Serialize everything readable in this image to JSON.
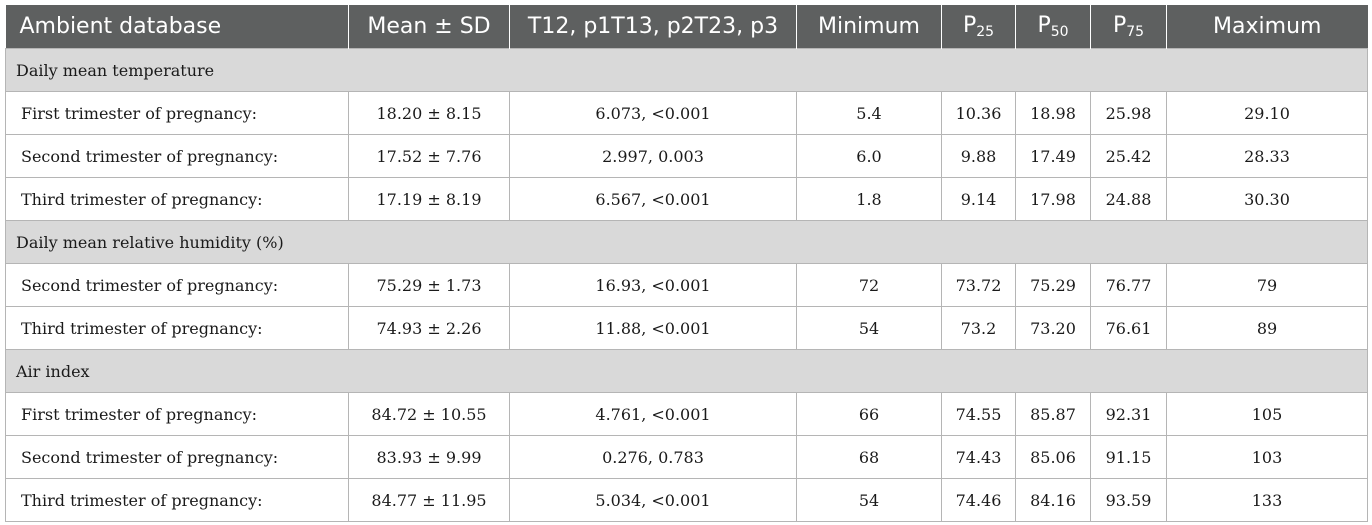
{
  "columns": [
    {
      "text": "Ambient database"
    },
    {
      "text": "Mean ± SD"
    },
    {
      "text": "T12, p1T13, p2T23, p3"
    },
    {
      "text": "Minimum"
    },
    {
      "text": "P",
      "sub": "25"
    },
    {
      "text": "P",
      "sub": "50"
    },
    {
      "text": "P",
      "sub": "75"
    },
    {
      "text": "Maximum"
    }
  ],
  "sections": [
    {
      "title": "Daily mean temperature",
      "rows": [
        [
          "First trimester of pregnancy:",
          "18.20 ± 8.15",
          "6.073, <0.001",
          "5.4",
          "10.36",
          "18.98",
          "25.98",
          "29.10"
        ],
        [
          "Second trimester of pregnancy:",
          "17.52 ± 7.76",
          "2.997, 0.003",
          "6.0",
          "9.88",
          "17.49",
          "25.42",
          "28.33"
        ],
        [
          "Third trimester of pregnancy:",
          "17.19 ± 8.19",
          "6.567, <0.001",
          "1.8",
          "9.14",
          "17.98",
          "24.88",
          "30.30"
        ]
      ]
    },
    {
      "title": "Daily mean relative humidity (%)",
      "rows": [
        [
          "Second trimester of pregnancy:",
          "75.29 ± 1.73",
          "16.93, <0.001",
          "72",
          "73.72",
          "75.29",
          "76.77",
          "79"
        ],
        [
          "Third trimester of pregnancy:",
          "74.93 ± 2.26",
          "11.88, <0.001",
          "54",
          "73.2",
          "73.20",
          "76.61",
          "89"
        ]
      ]
    },
    {
      "title": "Air index",
      "rows": [
        [
          "First trimester of pregnancy:",
          "84.72 ± 10.55",
          "4.761, <0.001",
          "66",
          "74.55",
          "85.87",
          "92.31",
          "105"
        ],
        [
          "Second trimester of pregnancy:",
          "83.93 ± 9.99",
          "0.276, 0.783",
          "68",
          "74.43",
          "85.06",
          "91.15",
          "103"
        ],
        [
          "Third trimester of pregnancy:",
          "84.77 ± 11.95",
          "5.034, <0.001",
          "54",
          "74.46",
          "84.16",
          "93.59",
          "133"
        ]
      ]
    }
  ]
}
